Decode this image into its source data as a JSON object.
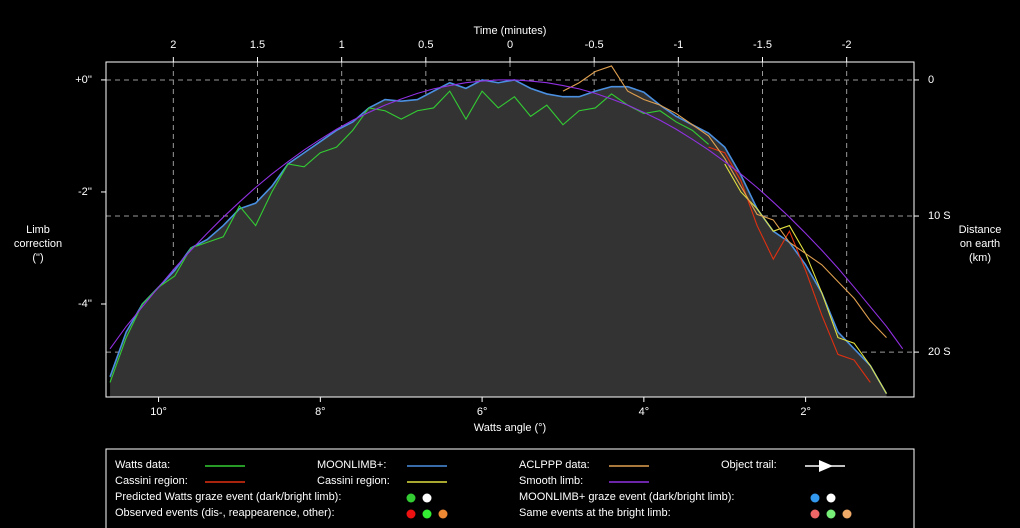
{
  "chart_data": {
    "type": "line",
    "x_label": "Watts angle (°)",
    "x2_label": "Time (minutes)",
    "y_label": [
      "Limb",
      "correction",
      "(\")"
    ],
    "y2_label": [
      "Distance",
      "on earth",
      "(km)"
    ],
    "xlim": [
      10.65,
      0.66
    ],
    "xticks": [
      {
        "value": 10,
        "label": "10°"
      },
      {
        "value": 8,
        "label": "8°"
      },
      {
        "value": 6,
        "label": "6°"
      },
      {
        "value": 4,
        "label": "4°"
      },
      {
        "value": 2,
        "label": "2°"
      }
    ],
    "x2lim": [
      2.4,
      -2.4
    ],
    "x2ticks": [
      2,
      1.5,
      1,
      0.5,
      0,
      -0.5,
      -1,
      -1.5,
      -2
    ],
    "ylim": [
      -5.66,
      0.32
    ],
    "yticks": [
      {
        "value": 0,
        "label": "+0''"
      },
      {
        "value": -2,
        "label": "-2''"
      },
      {
        "value": -4,
        "label": "-4''"
      }
    ],
    "y2lim": [
      23.3,
      -1.32
    ],
    "y2ticks": [
      0,
      {
        "value": 10,
        "label": "10 S"
      },
      {
        "value": 20,
        "label": "20 S"
      }
    ],
    "grid": true,
    "x": [
      10.6,
      10.4,
      10.2,
      10.0,
      9.8,
      9.6,
      9.4,
      9.2,
      9.0,
      8.8,
      8.6,
      8.4,
      8.2,
      8.0,
      7.8,
      7.6,
      7.4,
      7.2,
      7.0,
      6.8,
      6.6,
      6.4,
      6.2,
      6.0,
      5.8,
      5.6,
      5.4,
      5.2,
      5.0,
      4.8,
      4.6,
      4.4,
      4.2,
      4.0,
      3.8,
      3.6,
      3.4,
      3.2,
      3.0,
      2.8,
      2.6,
      2.4,
      2.2,
      2.0,
      1.8,
      1.6,
      1.4,
      1.2,
      1.0,
      0.8
    ],
    "series": [
      {
        "name": "Watts data:",
        "color": "#33cc33",
        "values": [
          -5.4,
          -4.6,
          -4.0,
          -3.7,
          -3.5,
          -3.0,
          -2.9,
          -2.8,
          -2.25,
          -2.6,
          -2.0,
          -1.5,
          -1.55,
          -1.3,
          -1.2,
          -0.9,
          -0.5,
          -0.55,
          -0.7,
          -0.55,
          -0.5,
          -0.2,
          -0.7,
          -0.2,
          -0.5,
          -0.3,
          -0.65,
          -0.45,
          -0.8,
          -0.55,
          -0.5,
          -0.25,
          -0.45,
          -0.6,
          -0.55,
          -0.75,
          -0.9,
          -1.15,
          null,
          null,
          null,
          null,
          null,
          null,
          null,
          null,
          null,
          null,
          null,
          null
        ]
      },
      {
        "name": "Cassini region:",
        "color": "#e03010",
        "values": [
          null,
          null,
          null,
          null,
          null,
          null,
          null,
          null,
          null,
          null,
          null,
          null,
          null,
          null,
          null,
          null,
          null,
          null,
          null,
          null,
          null,
          null,
          null,
          null,
          null,
          null,
          null,
          null,
          null,
          null,
          null,
          null,
          null,
          null,
          null,
          null,
          null,
          -1.2,
          -1.3,
          -1.8,
          -2.6,
          -3.2,
          -2.7,
          -3.4,
          -4.2,
          -4.9,
          -5.0,
          -5.4,
          null,
          null
        ]
      },
      {
        "name": "MOONLIMB+:",
        "color": "#4a8fe0",
        "fill": "#333333",
        "values": [
          -5.3,
          -4.5,
          -4.0,
          -3.7,
          -3.4,
          -3.0,
          -2.85,
          -2.6,
          -2.3,
          -2.2,
          -1.9,
          -1.5,
          -1.3,
          -1.1,
          -0.9,
          -0.75,
          -0.5,
          -0.35,
          -0.38,
          -0.35,
          -0.2,
          -0.05,
          -0.15,
          0.0,
          -0.05,
          0.0,
          -0.15,
          -0.25,
          -0.3,
          -0.3,
          -0.2,
          -0.12,
          -0.12,
          -0.22,
          -0.45,
          -0.65,
          -0.8,
          -0.95,
          -1.2,
          -1.7,
          -2.3,
          -2.7,
          -2.9,
          -3.3,
          -3.8,
          -4.5,
          -4.8,
          -5.1,
          -5.6,
          null
        ]
      },
      {
        "name": "Cassini region:",
        "color": "#e0e040",
        "values": [
          null,
          null,
          null,
          null,
          null,
          null,
          null,
          null,
          null,
          null,
          null,
          null,
          null,
          null,
          null,
          null,
          null,
          null,
          null,
          null,
          null,
          null,
          null,
          null,
          null,
          null,
          null,
          null,
          null,
          null,
          null,
          null,
          null,
          null,
          null,
          null,
          null,
          null,
          -1.5,
          -2.0,
          -2.3,
          -2.7,
          -2.6,
          -3.1,
          -3.8,
          -4.6,
          -4.7,
          -5.1,
          -5.6,
          null
        ]
      },
      {
        "name": "ACLPPP data:",
        "color": "#e0a050",
        "values": [
          null,
          null,
          null,
          null,
          null,
          null,
          null,
          null,
          null,
          null,
          null,
          null,
          null,
          null,
          null,
          null,
          null,
          null,
          null,
          null,
          null,
          null,
          null,
          null,
          null,
          null,
          null,
          null,
          -0.2,
          -0.05,
          0.15,
          0.25,
          -0.2,
          -0.35,
          -0.45,
          -0.6,
          -0.8,
          -1.0,
          -1.4,
          -1.9,
          -2.4,
          -2.5,
          -2.9,
          -3.1,
          -3.3,
          -3.6,
          -3.9,
          -4.3,
          -4.6,
          null
        ]
      },
      {
        "name": "Smooth limb:",
        "color": "#9030e0",
        "values": [
          -4.8,
          -4.4,
          -4.05,
          -3.7,
          -3.36,
          -3.04,
          -2.74,
          -2.45,
          -2.18,
          -1.92,
          -1.68,
          -1.46,
          -1.25,
          -1.06,
          -0.88,
          -0.72,
          -0.58,
          -0.45,
          -0.34,
          -0.24,
          -0.16,
          -0.1,
          -0.05,
          -0.02,
          0,
          0,
          -0.02,
          -0.05,
          -0.1,
          -0.16,
          -0.24,
          -0.34,
          -0.45,
          -0.58,
          -0.72,
          -0.88,
          -1.06,
          -1.25,
          -1.46,
          -1.68,
          -1.92,
          -2.18,
          -2.45,
          -2.74,
          -3.04,
          -3.36,
          -3.7,
          -4.05,
          -4.4,
          -4.8
        ]
      }
    ],
    "legend_extra": [
      {
        "name": "Object trail:",
        "color": "#ffffff"
      },
      {
        "name": "Predicted Watts graze event (dark/bright limb):",
        "colors": [
          "#33cc33",
          "#ffffff"
        ]
      },
      {
        "name": "Observed events (dis-, reappearence, other):",
        "colors": [
          "#ee1111",
          "#33ee33",
          "#ee8833"
        ]
      },
      {
        "name": "MOONLIMB+ graze event (dark/bright limb):",
        "colors": [
          "#3399ee",
          "#ffffff"
        ]
      },
      {
        "name": "Same events at the bright limb:",
        "colors": [
          "#ee6666",
          "#77ee77",
          "#eeaa66"
        ]
      }
    ]
  }
}
